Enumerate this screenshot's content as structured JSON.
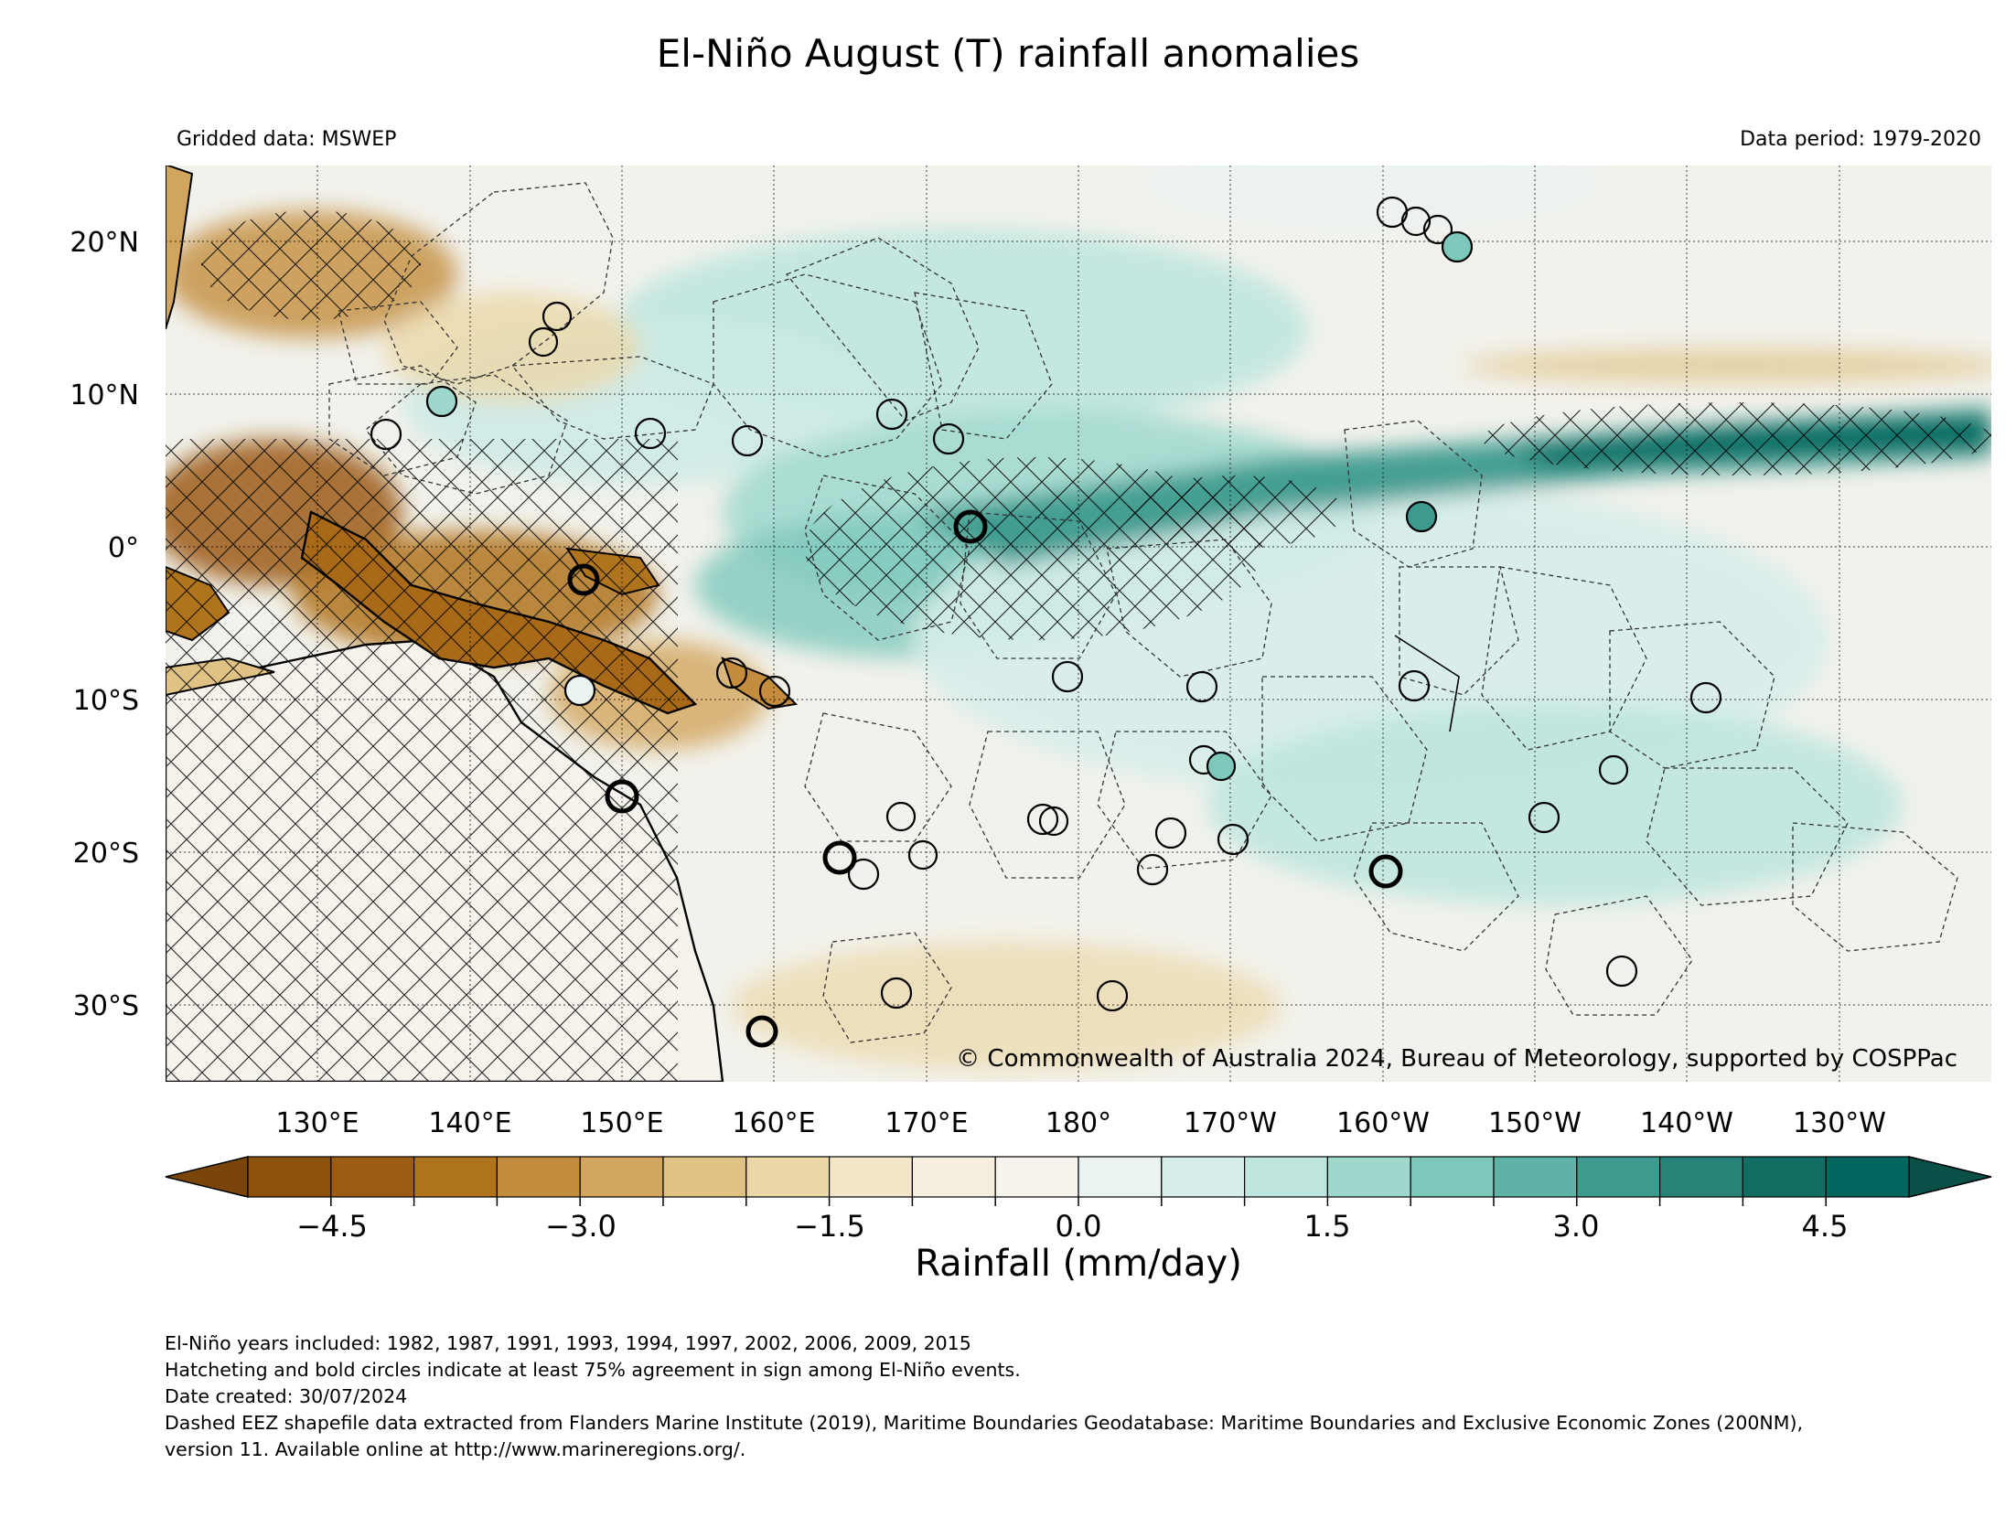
{
  "title": "El-Niño August (T) rainfall anomalies",
  "subtitle_left": "Gridded data: MSWEP",
  "subtitle_right": "Data period: 1979-2020",
  "copyright": "© Commonwealth of Australia 2024, Bureau of Meteorology, supported by COSPPac",
  "map": {
    "lon_range": [
      120,
      240
    ],
    "lat_range": [
      -35,
      25
    ],
    "lon_ticks": [
      "130°E",
      "140°E",
      "150°E",
      "160°E",
      "170°E",
      "180°",
      "170°W",
      "160°W",
      "150°W",
      "140°W",
      "130°W"
    ],
    "lat_ticks": [
      "20°N",
      "10°N",
      "0°",
      "10°S",
      "20°S",
      "30°S"
    ]
  },
  "colorbar": {
    "label": "Rainfall (mm/day)",
    "tick_labels": [
      "−4.5",
      "−3.0",
      "−1.5",
      "0.0",
      "1.5",
      "3.0",
      "4.5"
    ],
    "colors": [
      "#8c510a",
      "#9c5c14",
      "#b0741f",
      "#c38d3d",
      "#d2a55f",
      "#e0c285",
      "#ebd7a8",
      "#f4e7c9",
      "#f6efe0",
      "#f5f3ec",
      "#eaf3f1",
      "#d6edea",
      "#bfe5df",
      "#9ed8cd",
      "#7ec8bb",
      "#5fb3a6",
      "#3d9a8e",
      "#278377",
      "#126e62",
      "#01665e"
    ],
    "extend_low_color": "#7a4508",
    "extend_high_color": "#0a4f48"
  },
  "footer": [
    "El-Niño years included: 1982, 1987, 1991, 1993, 1994, 1997, 2002, 2006, 2009, 2015",
    "Hatcheting and bold circles indicate at least 75% agreement in sign among El-Niño events.",
    "Date created: 30/07/2024",
    "Dashed EEZ shapefile data extracted from Flanders Marine Institute (2019), Maritime Boundaries Geodatabase: Maritime Boundaries and Exclusive Economic Zones (200NM),",
    "version 11. Available online at http://www.marineregions.org/."
  ]
}
